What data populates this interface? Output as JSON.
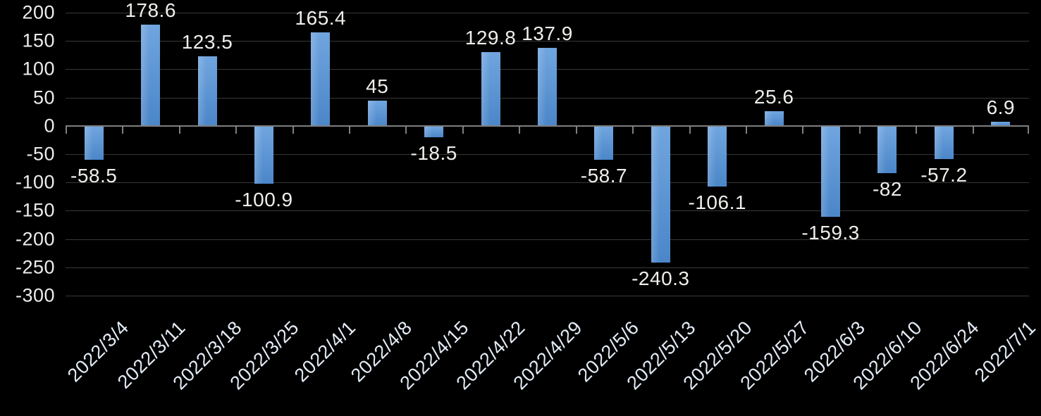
{
  "chart_data": {
    "type": "bar",
    "title": "",
    "xlabel": "",
    "ylabel": "",
    "categories": [
      "2022/3/4",
      "2022/3/11",
      "2022/3/18",
      "2022/3/25",
      "2022/4/1",
      "2022/4/8",
      "2022/4/15",
      "2022/4/22",
      "2022/4/29",
      "2022/5/6",
      "2022/5/13",
      "2022/5/20",
      "2022/5/27",
      "2022/6/3",
      "2022/6/10",
      "2022/6/24",
      "2022/7/1"
    ],
    "values": [
      -58.5,
      178.6,
      123.5,
      -100.9,
      165.4,
      45,
      -18.5,
      129.8,
      137.9,
      -58.7,
      -240.3,
      -106.1,
      25.6,
      -159.3,
      -82,
      -57.2,
      6.9
    ],
    "data_labels": [
      "-58.5",
      "178.6",
      "123.5",
      "-100.9",
      "165.4",
      "45",
      "-18.5",
      "129.8",
      "137.9",
      "-58.7",
      "-240.3",
      "-106.1",
      "25.6",
      "-159.3",
      "-82",
      "-57.2",
      "6.9"
    ],
    "ylim": [
      -300,
      200
    ],
    "yticks": [
      200,
      150,
      100,
      50,
      0,
      -50,
      -100,
      -150,
      -200,
      -250,
      -300
    ],
    "ytick_labels": [
      "200",
      "150",
      "100",
      "50",
      "0",
      "-50",
      "-100",
      "-150",
      "-200",
      "-250",
      "-300"
    ],
    "grid": true,
    "legend_position": "none",
    "x_label_rotation_deg": 45,
    "colors": {
      "background": "#000000",
      "bar_top": "#70A5DF",
      "bar_bottom": "#4B86C8",
      "gridline": "#383838",
      "zero_axis": "#7F7F7F",
      "ytick_text": "#ECECEC",
      "xtick_text": "#E4ECF7",
      "data_label_text": "#F0EEEA"
    }
  }
}
